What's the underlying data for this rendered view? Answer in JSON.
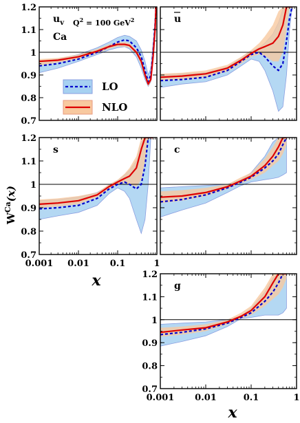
{
  "chart_data": [
    {
      "type": "line",
      "panel_label": "u",
      "panel_label_sub": "v",
      "nucleus": "Ca",
      "scale_label": "Q",
      "scale_sup": "2",
      "scale_value": " = 100 GeV",
      "scale_unit_sup": "2",
      "xscale": "log",
      "xlim": [
        0.001,
        1
      ],
      "ylim": [
        0.7,
        1.2
      ],
      "x": [
        0.001,
        0.003,
        0.01,
        0.03,
        0.06,
        0.1,
        0.15,
        0.2,
        0.3,
        0.4,
        0.5,
        0.6,
        0.7,
        0.8,
        0.9,
        0.95
      ],
      "series": [
        {
          "name": "LO",
          "values": [
            0.94,
            0.95,
            0.97,
            1.0,
            1.025,
            1.045,
            1.055,
            1.05,
            1.02,
            0.98,
            0.92,
            0.87,
            0.9,
            1.0,
            1.12,
            1.2
          ]
        },
        {
          "name": "NLO",
          "values": [
            0.96,
            0.965,
            0.98,
            1.005,
            1.025,
            1.035,
            1.035,
            1.03,
            1.0,
            0.96,
            0.9,
            0.86,
            0.88,
            0.98,
            1.1,
            1.2
          ]
        }
      ],
      "bands": [
        {
          "name": "LO",
          "lower": [
            0.91,
            0.93,
            0.96,
            0.99,
            1.01,
            1.02,
            1.025,
            1.015,
            0.98,
            0.93,
            0.88,
            0.85,
            0.87,
            0.97,
            1.1,
            1.2
          ],
          "upper": [
            0.96,
            0.97,
            0.99,
            1.02,
            1.045,
            1.065,
            1.075,
            1.07,
            1.05,
            1.01,
            0.96,
            0.9,
            0.93,
            1.04,
            1.15,
            1.2
          ]
        },
        {
          "name": "NLO",
          "lower": [
            0.94,
            0.955,
            0.97,
            0.995,
            1.015,
            1.025,
            1.025,
            1.02,
            0.99,
            0.945,
            0.885,
            0.85,
            0.87,
            0.97,
            1.09,
            1.2
          ],
          "upper": [
            0.97,
            0.975,
            0.99,
            1.015,
            1.035,
            1.045,
            1.045,
            1.04,
            1.01,
            0.975,
            0.915,
            0.875,
            0.895,
            0.995,
            1.11,
            1.2
          ]
        }
      ]
    },
    {
      "type": "line",
      "panel_label": "u",
      "panel_label_overline": true,
      "xscale": "log",
      "xlim": [
        0.001,
        1
      ],
      "ylim": [
        0.7,
        1.2
      ],
      "x": [
        0.001,
        0.003,
        0.01,
        0.03,
        0.06,
        0.1,
        0.15,
        0.2,
        0.3,
        0.4,
        0.5,
        0.6,
        0.7,
        0.8
      ],
      "series": [
        {
          "name": "LO",
          "values": [
            0.875,
            0.88,
            0.89,
            0.92,
            0.96,
            0.99,
            1.0,
            0.98,
            0.94,
            0.92,
            0.95,
            1.05,
            1.15,
            1.2
          ]
        },
        {
          "name": "NLO",
          "values": [
            0.89,
            0.895,
            0.905,
            0.93,
            0.965,
            0.995,
            1.015,
            1.025,
            1.04,
            1.07,
            1.12,
            1.2,
            1.2,
            1.2
          ]
        }
      ],
      "bands": [
        {
          "name": "LO",
          "lower": [
            0.845,
            0.86,
            0.87,
            0.9,
            0.94,
            0.97,
            0.96,
            0.92,
            0.83,
            0.74,
            0.76,
            0.9,
            1.1,
            1.2
          ],
          "upper": [
            0.9,
            0.905,
            0.91,
            0.935,
            0.975,
            1.005,
            1.02,
            1.04,
            1.08,
            1.13,
            1.19,
            1.2,
            1.2,
            1.2
          ]
        },
        {
          "name": "NLO",
          "lower": [
            0.875,
            0.88,
            0.89,
            0.915,
            0.95,
            0.98,
            0.99,
            0.985,
            0.96,
            0.96,
            1.0,
            1.1,
            1.2,
            1.2
          ],
          "upper": [
            0.905,
            0.91,
            0.92,
            0.945,
            0.98,
            1.01,
            1.04,
            1.07,
            1.12,
            1.18,
            1.2,
            1.2,
            1.2,
            1.2
          ]
        }
      ]
    },
    {
      "type": "line",
      "panel_label": "s",
      "xscale": "log",
      "xlim": [
        0.001,
        1
      ],
      "ylim": [
        0.7,
        1.2
      ],
      "x": [
        0.001,
        0.003,
        0.01,
        0.03,
        0.06,
        0.1,
        0.15,
        0.2,
        0.3,
        0.4,
        0.5,
        0.6,
        0.7,
        0.8
      ],
      "series": [
        {
          "name": "LO",
          "values": [
            0.895,
            0.9,
            0.91,
            0.94,
            0.98,
            1.0,
            1.01,
            1.0,
            0.98,
            1.0,
            1.08,
            1.2,
            1.2,
            1.2
          ]
        },
        {
          "name": "NLO",
          "values": [
            0.915,
            0.92,
            0.93,
            0.955,
            0.99,
            1.01,
            1.025,
            1.035,
            1.07,
            1.15,
            1.2,
            1.2,
            1.2,
            1.2
          ]
        }
      ],
      "bands": [
        {
          "name": "LO",
          "lower": [
            0.85,
            0.865,
            0.88,
            0.91,
            0.96,
            0.985,
            0.97,
            0.94,
            0.85,
            0.79,
            0.85,
            1.0,
            1.2,
            1.2
          ],
          "upper": [
            0.93,
            0.935,
            0.945,
            0.965,
            0.995,
            1.015,
            1.04,
            1.06,
            1.1,
            1.18,
            1.2,
            1.2,
            1.2,
            1.2
          ]
        },
        {
          "name": "NLO",
          "lower": [
            0.9,
            0.905,
            0.915,
            0.945,
            0.98,
            1.0,
            1.005,
            1.0,
            0.99,
            1.02,
            1.1,
            1.2,
            1.2,
            1.2
          ],
          "upper": [
            0.935,
            0.94,
            0.95,
            0.965,
            1.0,
            1.02,
            1.045,
            1.07,
            1.12,
            1.2,
            1.2,
            1.2,
            1.2,
            1.2
          ]
        }
      ]
    },
    {
      "type": "line",
      "panel_label": "c",
      "xscale": "log",
      "xlim": [
        0.001,
        1
      ],
      "ylim": [
        0.7,
        1.2
      ],
      "x": [
        0.001,
        0.003,
        0.01,
        0.03,
        0.06,
        0.1,
        0.2,
        0.3,
        0.4,
        0.5,
        0.6
      ],
      "series": [
        {
          "name": "LO",
          "values": [
            0.925,
            0.935,
            0.955,
            0.985,
            1.01,
            1.03,
            1.07,
            1.1,
            1.13,
            1.17,
            1.2
          ]
        },
        {
          "name": "NLO",
          "values": [
            0.945,
            0.95,
            0.965,
            0.99,
            1.015,
            1.035,
            1.08,
            1.12,
            1.16,
            1.2,
            1.2
          ]
        }
      ],
      "bands": [
        {
          "name": "LO",
          "lower": [
            0.86,
            0.89,
            0.92,
            0.965,
            0.995,
            1.01,
            1.02,
            1.025,
            1.03,
            1.04,
            1.05
          ],
          "upper": [
            0.985,
            0.99,
            0.995,
            1.0,
            1.02,
            1.05,
            1.12,
            1.18,
            1.2,
            1.2,
            1.2
          ]
        },
        {
          "name": "NLO",
          "lower": [
            0.92,
            0.93,
            0.95,
            0.98,
            1.005,
            1.02,
            1.05,
            1.08,
            1.1,
            1.13,
            1.17
          ],
          "upper": [
            0.97,
            0.975,
            0.985,
            1.0,
            1.03,
            1.05,
            1.11,
            1.16,
            1.2,
            1.2,
            1.2
          ]
        }
      ]
    },
    {
      "type": "line",
      "panel_label": "g",
      "xscale": "log",
      "xlim": [
        0.001,
        1
      ],
      "ylim": [
        0.7,
        1.2
      ],
      "x": [
        0.001,
        0.003,
        0.01,
        0.03,
        0.06,
        0.1,
        0.2,
        0.3,
        0.4,
        0.5,
        0.6
      ],
      "series": [
        {
          "name": "LO",
          "values": [
            0.935,
            0.945,
            0.96,
            0.985,
            1.01,
            1.03,
            1.08,
            1.12,
            1.16,
            1.2,
            1.2
          ]
        },
        {
          "name": "NLO",
          "values": [
            0.945,
            0.955,
            0.965,
            0.99,
            1.015,
            1.04,
            1.1,
            1.16,
            1.2,
            1.2,
            1.2
          ]
        }
      ],
      "bands": [
        {
          "name": "LO",
          "lower": [
            0.885,
            0.905,
            0.93,
            0.97,
            1.005,
            1.01,
            1.02,
            1.02,
            1.02,
            1.03,
            1.05
          ],
          "upper": [
            0.98,
            0.985,
            0.99,
            1.0,
            1.015,
            1.05,
            1.12,
            1.18,
            1.2,
            1.2,
            1.2
          ]
        },
        {
          "name": "NLO",
          "lower": [
            0.925,
            0.935,
            0.95,
            0.98,
            1.005,
            1.02,
            1.06,
            1.09,
            1.11,
            1.14,
            1.18
          ],
          "upper": [
            0.965,
            0.97,
            0.98,
            1.0,
            1.03,
            1.06,
            1.14,
            1.2,
            1.2,
            1.2,
            1.2
          ]
        }
      ]
    }
  ],
  "y_ticks": [
    "0.7",
    "0.8",
    "0.9",
    "1",
    "1.1",
    "1.2"
  ],
  "x_ticks": [
    "0.001",
    "0.01",
    "0.1",
    "1"
  ],
  "ylabel": "W",
  "ylabel_sup": "Ca",
  "ylabel_arg": "(x)",
  "xlabel": "x",
  "legend": [
    {
      "name": "LO",
      "line_color": "#0000cc",
      "fill": "#a7d1f1",
      "edge": "#8a9ee0",
      "dash": true
    },
    {
      "name": "NLO",
      "line_color": "#dd0000",
      "fill": "#f8c9a0",
      "edge": "#e89a80",
      "dash": false
    }
  ],
  "colors": {
    "lo_line": "#0000cc",
    "lo_band": "#a7d1f1",
    "lo_edge": "#8a9ee0",
    "nlo_line": "#dd0000",
    "nlo_band": "#f8c9a0",
    "unity_line": "#000000"
  }
}
